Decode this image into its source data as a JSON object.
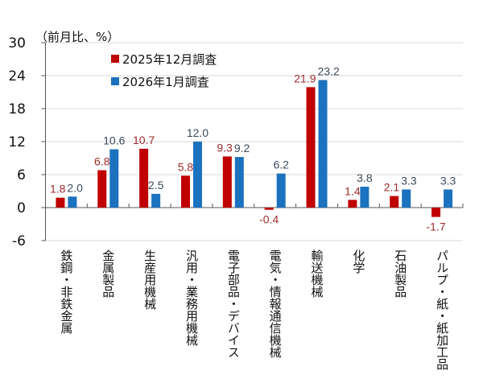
{
  "chart_data": {
    "type": "bar",
    "unit_label": "（前月比、%）",
    "categories": [
      "鉄鋼・非鉄金属",
      "金属製品",
      "生産用機械",
      "汎用・業務用機械",
      "電子部品・デバイス",
      "電気・情報通信機械",
      "輸送機械",
      "化学",
      "石油製品",
      "パルプ・紙・紙加工品"
    ],
    "series": [
      {
        "name": "2025年12月調査",
        "values": [
          1.8,
          6.8,
          10.7,
          5.8,
          9.3,
          -0.4,
          21.9,
          1.4,
          2.1,
          -1.7
        ],
        "labels": [
          "1.8",
          "6.8",
          "10.7",
          "5.8",
          "9.3",
          "-0.4",
          "21.9",
          "1.4",
          "2.1",
          "-1.7"
        ],
        "color": "#c00000",
        "label_color": "#9e2a2b"
      },
      {
        "name": "2026年1月調査",
        "values": [
          2.0,
          10.6,
          2.5,
          12.0,
          9.2,
          6.2,
          23.2,
          3.8,
          3.3,
          3.3
        ],
        "labels": [
          "2.0",
          "10.6",
          "2.5",
          "12.0",
          "9.2",
          "6.2",
          "23.2",
          "3.8",
          "3.3",
          "3.3"
        ],
        "color": "#1b72bf",
        "label_color": "#3c4a5c"
      }
    ],
    "ylim": [
      -6,
      30
    ],
    "yticks": [
      "30",
      "24",
      "18",
      "12",
      "6",
      "0",
      "-6"
    ],
    "ytick_values": [
      30,
      24,
      18,
      12,
      6,
      0,
      -6
    ],
    "grid": true,
    "legend_position": "top-left"
  }
}
